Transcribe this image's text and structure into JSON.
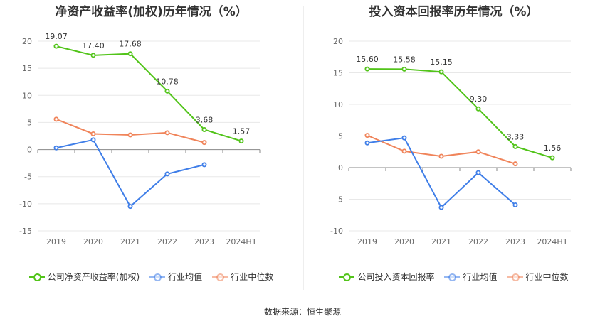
{
  "source_text": "数据来源：恒生聚源",
  "chart_data": [
    {
      "type": "line",
      "title": "净资产收益率(加权)历年情况（%）",
      "categories": [
        "2019",
        "2020",
        "2021",
        "2022",
        "2023",
        "2024H1"
      ],
      "ylim": [
        -15,
        20
      ],
      "yticks": [
        20,
        15,
        10,
        5,
        0,
        -5,
        -10,
        -15
      ],
      "grid": true,
      "legend_position": "bottom",
      "series": [
        {
          "name": "公司净资产收益率(加权)",
          "color": "#52c41a",
          "values": [
            19.07,
            17.4,
            17.68,
            10.78,
            3.68,
            1.57
          ],
          "labels": [
            "19.07",
            "17.40",
            "17.68",
            "10.78",
            "3.68",
            "1.57"
          ]
        },
        {
          "name": "行业均值",
          "color": "#3f7ee8",
          "values": [
            0.3,
            1.8,
            -10.5,
            -4.5,
            -2.8,
            null
          ],
          "labels": []
        },
        {
          "name": "行业中位数",
          "color": "#f0845a",
          "values": [
            5.6,
            2.9,
            2.7,
            3.1,
            1.3,
            null
          ],
          "labels": []
        }
      ]
    },
    {
      "type": "line",
      "title": "投入资本回报率历年情况（%）",
      "categories": [
        "2019",
        "2020",
        "2021",
        "2022",
        "2023",
        "2024H1"
      ],
      "ylim": [
        -10,
        20
      ],
      "yticks": [
        20,
        15,
        10,
        5,
        0,
        -5,
        -10
      ],
      "grid": true,
      "legend_position": "bottom",
      "series": [
        {
          "name": "公司投入资本回报率",
          "color": "#52c41a",
          "values": [
            15.6,
            15.58,
            15.15,
            9.3,
            3.33,
            1.56
          ],
          "labels": [
            "15.60",
            "15.58",
            "15.15",
            "9.30",
            "3.33",
            "1.56"
          ]
        },
        {
          "name": "行业均值",
          "color": "#3f7ee8",
          "values": [
            3.9,
            4.7,
            -6.3,
            -0.8,
            -5.9,
            null
          ],
          "labels": []
        },
        {
          "name": "行业中位数",
          "color": "#f0845a",
          "values": [
            5.1,
            2.6,
            1.8,
            2.5,
            0.6,
            null
          ],
          "labels": []
        }
      ]
    }
  ]
}
